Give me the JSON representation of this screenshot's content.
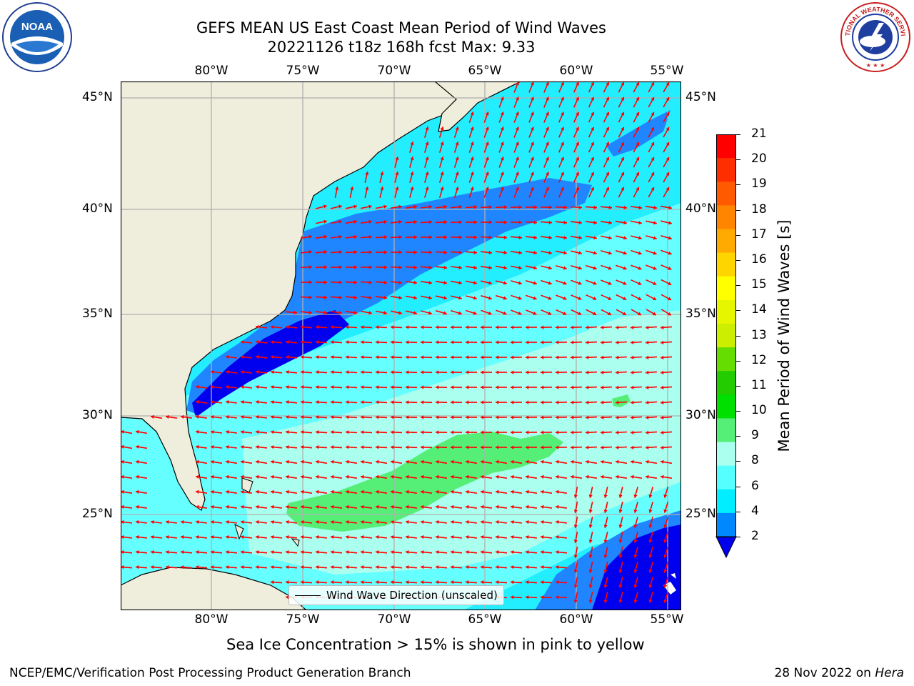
{
  "title": {
    "line1": "GEFS MEAN US East Coast Mean Period of Wind Waves",
    "line2": "20221126 t18z 168h fcst    Max: 9.33"
  },
  "logos": {
    "left": "NOAA",
    "left_ring": "NATIONAL OCEANIC AND ATMOSPHERIC ADMINISTRATION · U.S. DEPARTMENT OF COMMERCE",
    "right_ring": "NATIONAL WEATHER SERVICE"
  },
  "map": {
    "lon_ticks": [
      "80°W",
      "75°W",
      "70°W",
      "65°W",
      "60°W",
      "55°W"
    ],
    "lat_ticks": [
      "45°N",
      "40°N",
      "35°N",
      "30°N",
      "25°N"
    ],
    "extent": {
      "lon": [
        -85,
        -54.3
      ],
      "lat": [
        20.5,
        45.8
      ]
    },
    "legend": "Wind Wave Direction (unscaled)",
    "arrow_color": "#ff0000",
    "land_color": "#efeddb"
  },
  "colorbar": {
    "label": "Mean Period of Wind Waves [s]",
    "ticks": [
      "21",
      "20",
      "19",
      "18",
      "17",
      "16",
      "15",
      "14",
      "13",
      "12",
      "11",
      "10",
      "9",
      "8",
      "6",
      "4",
      "2"
    ],
    "colors": [
      "#ff0000",
      "#ff2e00",
      "#ff5a00",
      "#ff8500",
      "#ffaa00",
      "#ffd500",
      "#ffff00",
      "#e6f500",
      "#ccee00",
      "#66dd00",
      "#22cc00",
      "#00e000",
      "#55ee77",
      "#aaffee",
      "#55ffff",
      "#00eeff",
      "#0088ff"
    ],
    "extend_color": "#0000ee"
  },
  "caption": "Sea Ice Concentration > 15% is shown in pink to yellow",
  "footer": {
    "left": "NCEP/EMC/Verification Post Processing Product Generation Branch",
    "right_date": "28 Nov 2022 on ",
    "right_host": "Hera"
  }
}
